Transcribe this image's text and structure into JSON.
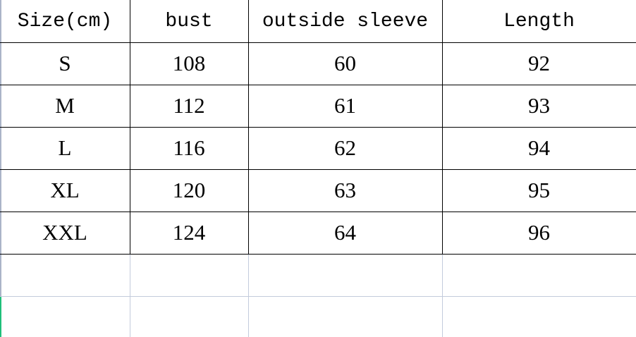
{
  "table": {
    "headers": [
      "Size(cm)",
      "bust",
      "outside sleeve",
      "Length"
    ],
    "rows": [
      [
        "S",
        "108",
        "60",
        "92"
      ],
      [
        "M",
        "112",
        "61",
        "93"
      ],
      [
        "L",
        "116",
        "62",
        "94"
      ],
      [
        "XL",
        "120",
        "63",
        "95"
      ],
      [
        "XXL",
        "124",
        "64",
        "96"
      ]
    ]
  },
  "colors": {
    "border": "#000000",
    "gridline": "#c3cbdc",
    "selection_edge": "#1fbf7a"
  }
}
